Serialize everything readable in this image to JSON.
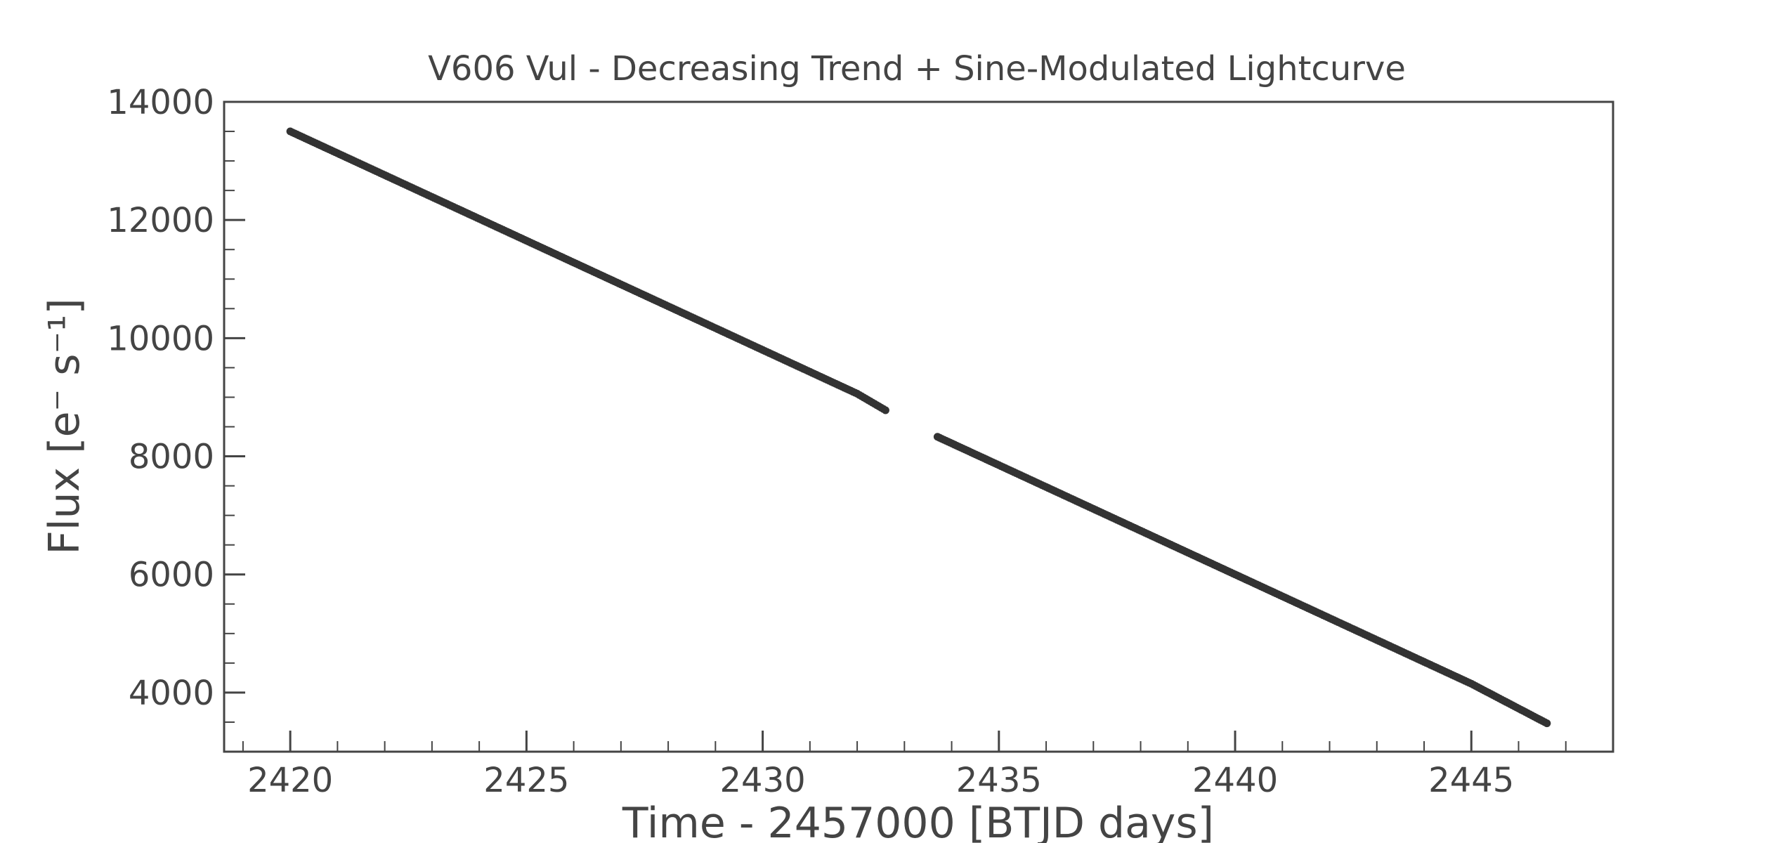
{
  "chart_data": {
    "type": "scatter",
    "title": "V606 Vul - Decreasing Trend + Sine-Modulated Lightcurve",
    "xlabel": "Time - 2457000 [BTJD days]",
    "ylabel": "Flux [e⁻ s⁻¹]",
    "xlim": [
      2418.6,
      2448.0
    ],
    "ylim": [
      3000,
      14000
    ],
    "x_ticks": [
      2420,
      2425,
      2430,
      2435,
      2440,
      2445
    ],
    "x_tick_labels": [
      "2420",
      "2425",
      "2430",
      "2435",
      "2440",
      "2445"
    ],
    "y_ticks": [
      4000,
      6000,
      8000,
      10000,
      12000,
      14000
    ],
    "y_tick_labels": [
      "4000",
      "6000",
      "8000",
      "10000",
      "12000",
      "14000"
    ],
    "grid": false,
    "marker_color": "#333333",
    "series": [
      {
        "segments": [
          {
            "x": [
              2420.0,
              2422.0,
              2424.0,
              2426.0,
              2428.0,
              2430.0,
              2432.0,
              2432.6
            ],
            "y": [
              13500,
              12760,
              12020,
              11280,
              10540,
              9800,
              9060,
              8780
            ]
          },
          {
            "x": [
              2433.7,
              2435.0,
              2437.0,
              2439.0,
              2441.0,
              2443.0,
              2445.0,
              2446.6
            ],
            "y": [
              8330,
              7850,
              7110,
              6370,
              5630,
              4890,
              4150,
              3480
            ]
          }
        ]
      }
    ]
  }
}
